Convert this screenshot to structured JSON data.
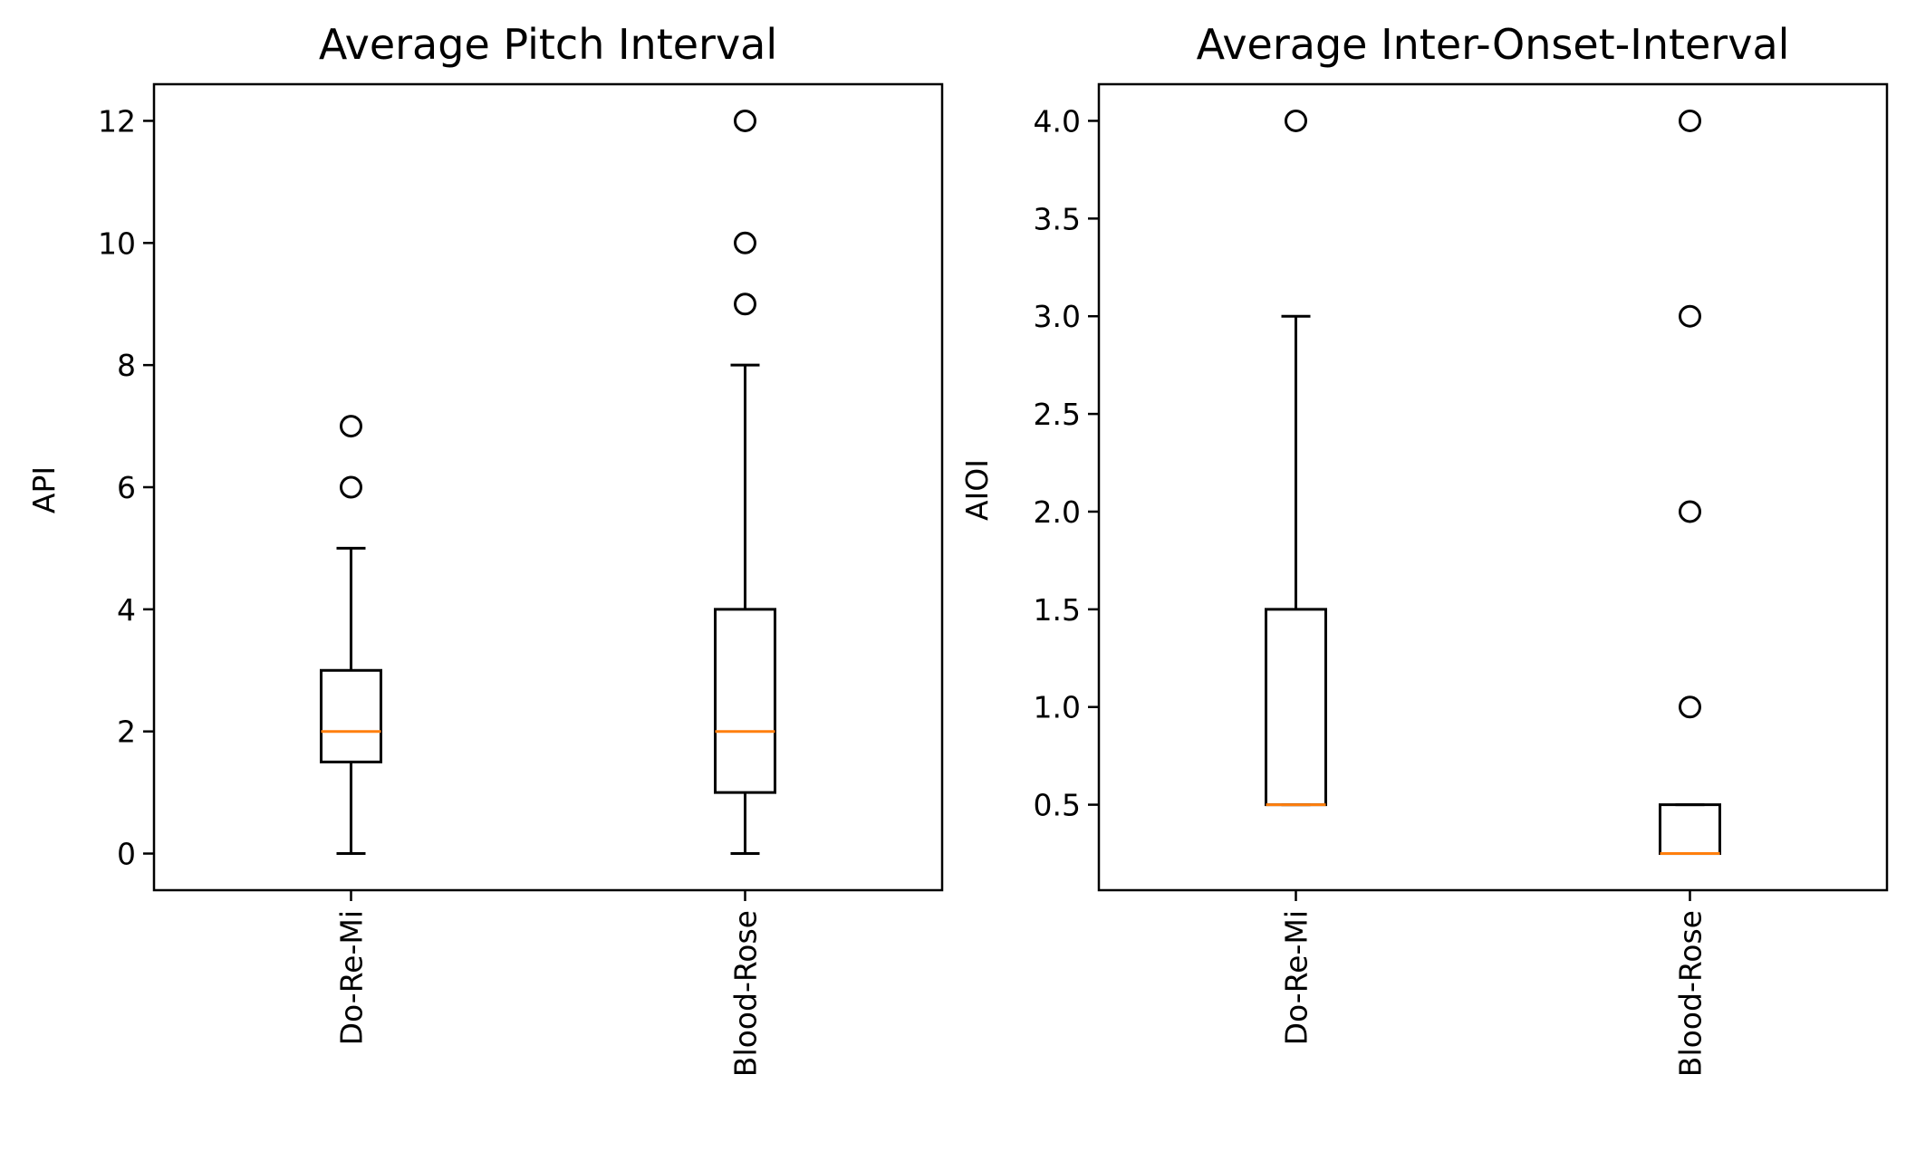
{
  "chart_data": [
    {
      "type": "box",
      "title": "Average Pitch Interval",
      "xlabel": "",
      "ylabel": "API",
      "categories": [
        "Do-Re-Mi",
        "Blood-Rose"
      ],
      "ylim": [
        -0.6,
        12.6
      ],
      "yticks": [
        0,
        2,
        4,
        6,
        8,
        10,
        12
      ],
      "ytick_labels": [
        "0",
        "2",
        "4",
        "6",
        "8",
        "10",
        "12"
      ],
      "boxes": [
        {
          "whisker_low": 0,
          "q1": 1.5,
          "median": 2,
          "q3": 3,
          "whisker_high": 5,
          "outliers": [
            6,
            7
          ]
        },
        {
          "whisker_low": 0,
          "q1": 1,
          "median": 2,
          "q3": 4,
          "whisker_high": 8,
          "outliers": [
            9,
            10,
            12
          ]
        }
      ],
      "grid": false,
      "x_tick_rotation": "vertical"
    },
    {
      "type": "box",
      "title": "Average Inter-Onset-Interval",
      "xlabel": "",
      "ylabel": "AIOI",
      "categories": [
        "Do-Re-Mi",
        "Blood-Rose"
      ],
      "ylim": [
        0.0625,
        4.1875
      ],
      "yticks": [
        0.5,
        1.0,
        1.5,
        2.0,
        2.5,
        3.0,
        3.5,
        4.0
      ],
      "ytick_labels": [
        "0.5",
        "1.0",
        "1.5",
        "2.0",
        "2.5",
        "3.0",
        "3.5",
        "4.0"
      ],
      "boxes": [
        {
          "whisker_low": 0.5,
          "q1": 0.5,
          "median": 0.5,
          "q3": 1.5,
          "whisker_high": 3.0,
          "outliers": [
            4.0
          ]
        },
        {
          "whisker_low": 0.25,
          "q1": 0.25,
          "median": 0.25,
          "q3": 0.5,
          "whisker_high": 0.5,
          "outliers": [
            1.0,
            2.0,
            3.0,
            4.0
          ]
        }
      ],
      "grid": false,
      "x_tick_rotation": "vertical"
    }
  ],
  "colors": {
    "box": "#000000",
    "median": "#ff7f0e",
    "background": "#ffffff"
  }
}
